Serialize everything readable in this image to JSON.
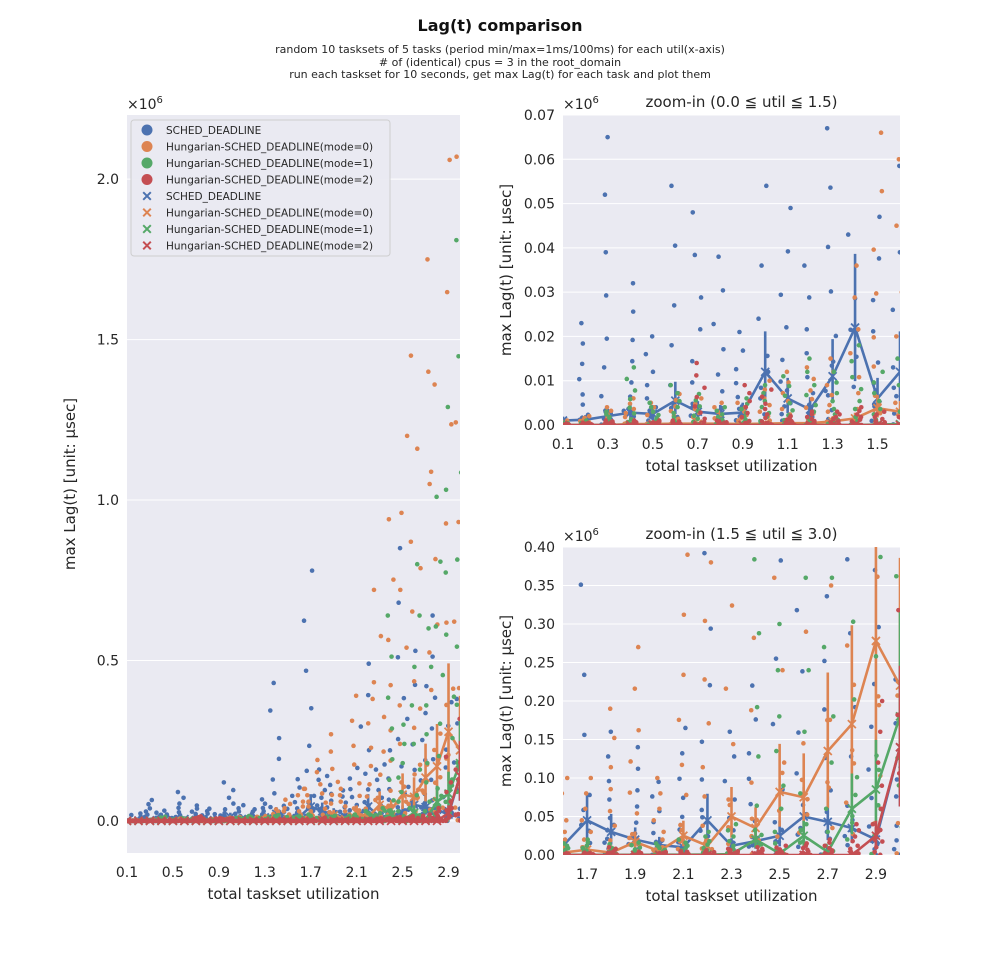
{
  "figure": {
    "title": "Lag(t) comparison",
    "subtitle_lines": [
      "random 10 tasksets of 5 tasks (period min/max=1ms/100ms) for each util(x-axis)",
      "# of (identical) cpus = 3 in the root_domain",
      "run each taskset for 10 seconds, get max Lag(t) for each task and plot them"
    ]
  },
  "legend": {
    "location": "top-left of main panel",
    "entries": [
      {
        "label": "SCHED_DEADLINE",
        "marker": "circle",
        "color": "#4c72b0"
      },
      {
        "label": "Hungarian-SCHED_DEADLINE(mode=0)",
        "marker": "circle",
        "color": "#dd8452"
      },
      {
        "label": "Hungarian-SCHED_DEADLINE(mode=1)",
        "marker": "circle",
        "color": "#55a868"
      },
      {
        "label": "Hungarian-SCHED_DEADLINE(mode=2)",
        "marker": "circle",
        "color": "#c44e52"
      },
      {
        "label": "SCHED_DEADLINE",
        "marker": "x",
        "color": "#4c72b0"
      },
      {
        "label": "Hungarian-SCHED_DEADLINE(mode=0)",
        "marker": "x",
        "color": "#dd8452"
      },
      {
        "label": "Hungarian-SCHED_DEADLINE(mode=1)",
        "marker": "x",
        "color": "#55a868"
      },
      {
        "label": "Hungarian-SCHED_DEADLINE(mode=2)",
        "marker": "x",
        "color": "#c44e52"
      }
    ]
  },
  "colors": {
    "SCHED_DEADLINE": "#4c72b0",
    "mode0": "#dd8452",
    "mode1": "#55a868",
    "mode2": "#c44e52",
    "plot_background": "#eaeaf2",
    "grid": "#ffffff"
  },
  "chart_data": [
    {
      "id": "main",
      "type": "scatter",
      "title": "",
      "xlabel": "total taskset utilization",
      "ylabel": "max Lag(t) [unit: µsec]",
      "y_offset_text": "×10^6",
      "xlim": [
        0.1,
        3.0
      ],
      "ylim": [
        -0.1,
        2.2
      ],
      "xticks": [
        0.1,
        0.5,
        0.9,
        1.3,
        1.7,
        2.1,
        2.5,
        2.9
      ],
      "xtick_labels": [
        "0.1",
        "0.5",
        "0.9",
        "1.3",
        "1.7",
        "2.1",
        "2.5",
        "2.9"
      ],
      "yticks": [
        0.0,
        0.5,
        1.0,
        1.5,
        2.0
      ],
      "ytick_labels": [
        "0.0",
        "0.5",
        "1.0",
        "1.5",
        "2.0"
      ],
      "grid": "horizontal",
      "legend": true,
      "series": [
        {
          "name": "SCHED_DEADLINE",
          "x": [
            0.1,
            0.2,
            0.3,
            0.4,
            0.5,
            0.6,
            0.7,
            0.8,
            0.9,
            1.0,
            1.1,
            1.2,
            1.3,
            1.4,
            1.5,
            1.6,
            1.7,
            1.8,
            1.9,
            2.0,
            2.1,
            2.2,
            2.3,
            2.4,
            2.5,
            2.6,
            2.7,
            2.8,
            2.9,
            3.0
          ],
          "y": [
            0.001,
            0.0012,
            0.002,
            0.0028,
            0.0025,
            0.0055,
            0.003,
            0.0025,
            0.0028,
            0.012,
            0.006,
            0.0035,
            0.011,
            0.022,
            0.006,
            0.012,
            0.045,
            0.03,
            0.02,
            0.013,
            0.01,
            0.045,
            0.012,
            0.018,
            0.025,
            0.05,
            0.043,
            0.035,
            0.02,
            0.14
          ],
          "scatter_max": [
            0.002,
            0.023,
            0.065,
            0.032,
            0.02,
            0.09,
            0.048,
            0.038,
            0.021,
            0.12,
            0.049,
            0.036,
            0.067,
            0.43,
            0.047,
            0.13,
            0.78,
            0.16,
            0.14,
            0.095,
            0.165,
            0.49,
            0.16,
            0.22,
            0.85,
            0.53,
            0.42,
            0.64,
            0.37,
            0.38
          ]
        },
        {
          "name": "Hungarian-SCHED_DEADLINE(mode=0)",
          "x": [
            0.1,
            0.2,
            0.3,
            0.4,
            0.5,
            0.6,
            0.7,
            0.8,
            0.9,
            1.0,
            1.1,
            1.2,
            1.3,
            1.4,
            1.5,
            1.6,
            1.7,
            1.8,
            1.9,
            2.0,
            2.1,
            2.2,
            2.3,
            2.4,
            2.5,
            2.6,
            2.7,
            2.8,
            2.9,
            3.0
          ],
          "y": [
            0,
            0,
            0,
            0.0002,
            0.0002,
            0.0003,
            0.0003,
            0.0003,
            0.0002,
            0.0003,
            0.0004,
            0.0004,
            0.0008,
            0.0015,
            0.0038,
            0.003,
            0.007,
            0.003,
            0.017,
            0.005,
            0.025,
            0.012,
            0.05,
            0.035,
            0.082,
            0.075,
            0.135,
            0.17,
            0.278,
            0.22
          ],
          "scatter_max": [
            0.001,
            0.002,
            0.004,
            0.006,
            0.005,
            0.007,
            0.006,
            0.005,
            0.005,
            0.01,
            0.012,
            0.013,
            0.015,
            0.036,
            0.066,
            0.1,
            0.1,
            0.19,
            0.27,
            0.1,
            0.39,
            0.38,
            0.72,
            0.94,
            1.2,
            1.45,
            1.75,
            1.36,
            2.06,
            2.07
          ]
        },
        {
          "name": "Hungarian-SCHED_DEADLINE(mode=1)",
          "x": [
            0.1,
            0.2,
            0.3,
            0.4,
            0.5,
            0.6,
            0.7,
            0.8,
            0.9,
            1.0,
            1.1,
            1.2,
            1.3,
            1.4,
            1.5,
            1.6,
            1.7,
            1.8,
            1.9,
            2.0,
            2.1,
            2.2,
            2.3,
            2.4,
            2.5,
            2.6,
            2.7,
            2.8,
            2.9,
            3.0
          ],
          "y": [
            0,
            0,
            0,
            0,
            0,
            0,
            0,
            0,
            0,
            0,
            0,
            0,
            0,
            0,
            0.0001,
            0.0002,
            0.0002,
            0.0003,
            0.0003,
            0.0004,
            0.0005,
            0.0006,
            0.001,
            0.02,
            0.002,
            0.025,
            0.004,
            0.06,
            0.085,
            0.18
          ],
          "scatter_max": [
            0.0005,
            0.001,
            0.003,
            0.013,
            0.005,
            0.009,
            0.007,
            0.004,
            0.006,
            0.009,
            0.011,
            0.015,
            0.012,
            0.018,
            0.012,
            0.015,
            0.02,
            0.014,
            0.016,
            0.015,
            0.02,
            0.03,
            0.04,
            0.64,
            0.3,
            0.8,
            0.6,
            1.01,
            1.29,
            1.81
          ]
        },
        {
          "name": "Hungarian-SCHED_DEADLINE(mode=2)",
          "x": [
            0.1,
            0.2,
            0.3,
            0.4,
            0.5,
            0.6,
            0.7,
            0.8,
            0.9,
            1.0,
            1.1,
            1.2,
            1.3,
            1.4,
            1.5,
            1.6,
            1.7,
            1.8,
            1.9,
            2.0,
            2.1,
            2.2,
            2.3,
            2.4,
            2.5,
            2.6,
            2.7,
            2.8,
            2.9,
            3.0
          ],
          "y": [
            0,
            0,
            0,
            0,
            0,
            0,
            0,
            0,
            0,
            0,
            0,
            0,
            0,
            0,
            0,
            0,
            0,
            0,
            0,
            0,
            0,
            0,
            0,
            0,
            0,
            0,
            0,
            0,
            0.025,
            0.14
          ],
          "scatter_max": [
            0.0003,
            0.0005,
            0.001,
            0.001,
            0.001,
            0.001,
            0.014,
            0.001,
            0.009,
            0.008,
            0.002,
            0.003,
            0.003,
            0.004,
            0.003,
            0.003,
            0.003,
            0.01,
            0.004,
            0.004,
            0.005,
            0.006,
            0.008,
            0.01,
            0.012,
            0.015,
            0.02,
            0.04,
            0.2,
            1.06
          ]
        }
      ]
    },
    {
      "id": "zoom1",
      "type": "scatter",
      "title": "zoom-in (0.0 ≦ util ≦ 1.5)",
      "xlabel": "total taskset utilization",
      "ylabel": "max Lag(t) [unit: µsec]",
      "y_offset_text": "×10^6",
      "xlim": [
        0.1,
        1.6
      ],
      "ylim": [
        0,
        0.07
      ],
      "xticks": [
        0.1,
        0.3,
        0.5,
        0.7,
        0.9,
        1.1,
        1.3,
        1.5
      ],
      "xtick_labels": [
        "0.1",
        "0.3",
        "0.5",
        "0.7",
        "0.9",
        "1.1",
        "1.3",
        "1.5"
      ],
      "yticks": [
        0.0,
        0.01,
        0.02,
        0.03,
        0.04,
        0.05,
        0.06,
        0.07
      ],
      "ytick_labels": [
        "0.00",
        "0.01",
        "0.02",
        "0.03",
        "0.04",
        "0.05",
        "0.06",
        "0.07"
      ],
      "grid": "horizontal",
      "legend": false,
      "series": [
        {
          "name": "SCHED_DEADLINE",
          "x_range": [
            0.1,
            1.6
          ]
        },
        {
          "name": "Hungarian-SCHED_DEADLINE(mode=0)",
          "x_range": [
            0.1,
            1.6
          ]
        },
        {
          "name": "Hungarian-SCHED_DEADLINE(mode=1)",
          "x_range": [
            0.1,
            1.6
          ]
        },
        {
          "name": "Hungarian-SCHED_DEADLINE(mode=2)",
          "x_range": [
            0.1,
            1.6
          ]
        }
      ]
    },
    {
      "id": "zoom2",
      "type": "scatter",
      "title": "zoom-in (1.5 ≦ util ≦ 3.0)",
      "xlabel": "total taskset utilization",
      "ylabel": "max Lag(t) [unit: µsec]",
      "y_offset_text": "×10^6",
      "xlim": [
        1.6,
        3.0
      ],
      "ylim": [
        0,
        0.4
      ],
      "xticks": [
        1.7,
        1.9,
        2.1,
        2.3,
        2.5,
        2.7,
        2.9
      ],
      "xtick_labels": [
        "1.7",
        "1.9",
        "2.1",
        "2.3",
        "2.5",
        "2.7",
        "2.9"
      ],
      "yticks": [
        0.0,
        0.05,
        0.1,
        0.15,
        0.2,
        0.25,
        0.3,
        0.35,
        0.4
      ],
      "ytick_labels": [
        "0.00",
        "0.05",
        "0.10",
        "0.15",
        "0.20",
        "0.25",
        "0.30",
        "0.35",
        "0.40"
      ],
      "grid": "horizontal",
      "legend": false,
      "series": [
        {
          "name": "SCHED_DEADLINE",
          "x_range": [
            1.6,
            3.0
          ]
        },
        {
          "name": "Hungarian-SCHED_DEADLINE(mode=0)",
          "x_range": [
            1.6,
            3.0
          ]
        },
        {
          "name": "Hungarian-SCHED_DEADLINE(mode=1)",
          "x_range": [
            1.6,
            3.0
          ]
        },
        {
          "name": "Hungarian-SCHED_DEADLINE(mode=2)",
          "x_range": [
            1.6,
            3.0
          ]
        }
      ]
    }
  ]
}
